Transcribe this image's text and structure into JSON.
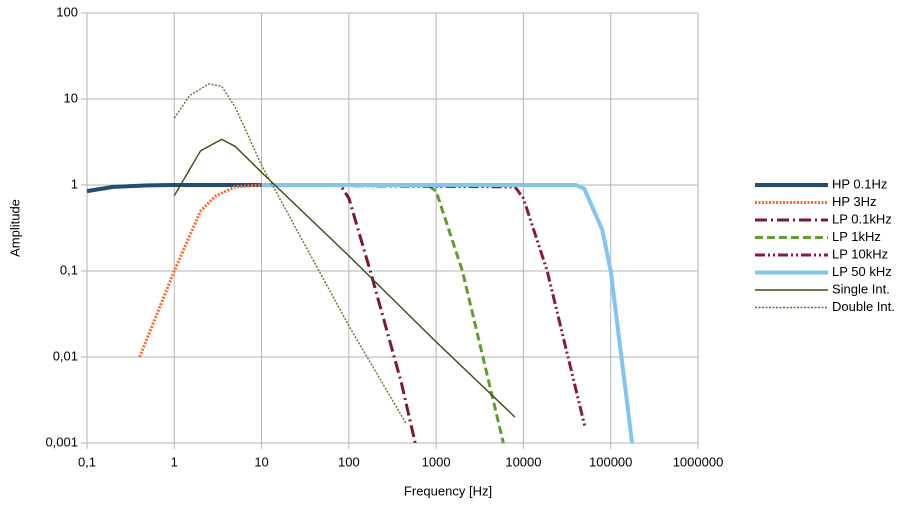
{
  "chart_data": {
    "type": "line",
    "x_label": "Frequency [Hz]",
    "y_label": "Amplitude",
    "xscale": "log",
    "yscale": "log",
    "grid": true,
    "legend": "right",
    "xlim": [
      0.1,
      1000000
    ],
    "xticks": [
      {
        "value": 0.1,
        "label": "0,1"
      },
      1,
      10,
      100,
      1000,
      10000,
      100000,
      1000000
    ],
    "ylim": [
      0.001,
      100
    ],
    "yticks": [
      {
        "value": 0.001,
        "label": "0,001"
      },
      {
        "value": 0.01,
        "label": "0,01"
      },
      {
        "value": 0.1,
        "label": "0,1"
      },
      1,
      10,
      100
    ],
    "series": [
      {
        "name": "HP 0.1Hz",
        "color": "#1f4e79",
        "line_style": "solid",
        "line_weight": "thick",
        "x": [
          0.1,
          0.2,
          0.5,
          1,
          10
        ],
        "values": [
          0.85,
          0.95,
          0.99,
          1,
          1
        ]
      },
      {
        "name": "HP 3Hz",
        "color": "#ff6a28",
        "line_style": "dotted",
        "line_weight": "medium",
        "x": [
          0.4,
          1,
          2,
          3,
          5,
          10
        ],
        "values": [
          0.01,
          0.1,
          0.5,
          0.75,
          0.95,
          1
        ]
      },
      {
        "name": "LP 0.1kHz",
        "color": "#7b1a2e",
        "line_style": "dash-dot",
        "line_weight": "medium",
        "x": [
          10,
          80,
          100,
          176,
          400,
          575
        ],
        "values": [
          1,
          1,
          0.7,
          0.1,
          0.005,
          0.001
        ]
      },
      {
        "name": "LP 1kHz",
        "color": "#5e9e2f",
        "line_style": "dash",
        "line_weight": "medium",
        "x": [
          10,
          800,
          1000,
          2000,
          5900
        ],
        "values": [
          1,
          1,
          0.85,
          0.1,
          0.001
        ]
      },
      {
        "name": "LP 10kHz",
        "color": "#8b1a3a",
        "line_style": "dash-dot-dot",
        "line_weight": "medium",
        "x": [
          10,
          8000,
          10000,
          18700,
          51000
        ],
        "values": [
          1,
          0.95,
          0.7,
          0.1,
          0.0015
        ]
      },
      {
        "name": "LP 50 kHz",
        "color": "#83c5f0",
        "line_style": "solid",
        "line_weight": "thick",
        "x": [
          10,
          40000,
          50000,
          80000,
          100000,
          176000
        ],
        "values": [
          1,
          1,
          0.9,
          0.3,
          0.1,
          0.001
        ]
      },
      {
        "name": "Single Int.",
        "color": "#3b4a12",
        "line_style": "solid",
        "line_weight": "thin",
        "x": [
          1,
          2,
          3.5,
          5,
          10,
          100,
          1000,
          8000
        ],
        "values": [
          0.75,
          2.5,
          3.4,
          2.8,
          1.4,
          0.15,
          0.015,
          0.002
        ]
      },
      {
        "name": "Double Int.",
        "color": "#6b6b2a",
        "line_style": "dotted",
        "line_weight": "thin",
        "x": [
          1,
          1.5,
          2.5,
          3.5,
          5,
          10,
          100,
          450
        ],
        "values": [
          6,
          11,
          15,
          14,
          8,
          1.7,
          0.023,
          0.0017
        ]
      }
    ]
  }
}
